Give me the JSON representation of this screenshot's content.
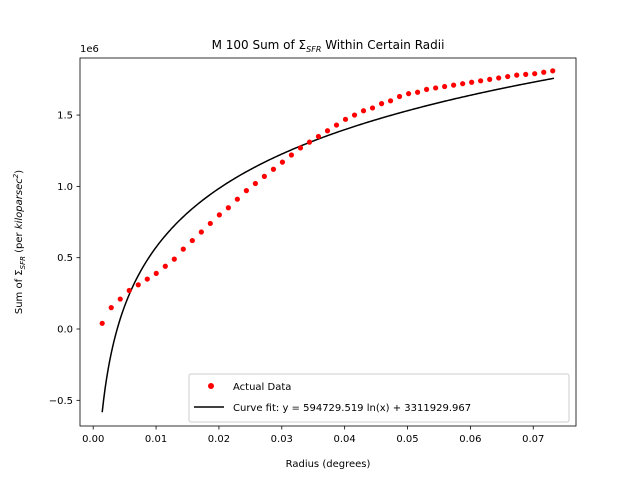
{
  "chart_data": {
    "type": "scatter",
    "title": {
      "prefix": "M 100 Sum of Σ",
      "sub": "SFR",
      "suffix": " Within Certain Radii"
    },
    "xlabel": "Radius (degrees)",
    "ylabel": {
      "prefix": "Sum of Σ",
      "sub": "SFR",
      "mid": " (per ",
      "unit": "kiloparsec",
      "sup": "2",
      "suffix": ")"
    },
    "y_offset_label": "1e6",
    "y_scale": 1000000,
    "xlim": [
      -0.0021,
      0.0768
    ],
    "ylim": [
      -680000,
      1900000
    ],
    "x_ticks": [
      0.0,
      0.01,
      0.02,
      0.03,
      0.04,
      0.05,
      0.06,
      0.07
    ],
    "x_tick_labels": [
      "0.00",
      "0.01",
      "0.02",
      "0.03",
      "0.04",
      "0.05",
      "0.06",
      "0.07"
    ],
    "y_ticks": [
      -500000,
      0,
      500000,
      1000000,
      1500000
    ],
    "y_tick_labels": [
      "−0.5",
      "0.0",
      "0.5",
      "1.0",
      "1.5"
    ],
    "legend_position": "lower-right",
    "series": [
      {
        "name": "Actual Data",
        "kind": "scatter",
        "color": "#ff0000",
        "x": [
          0.00143,
          0.00287,
          0.0043,
          0.00573,
          0.00717,
          0.0086,
          0.01003,
          0.01147,
          0.0129,
          0.01433,
          0.01577,
          0.0172,
          0.01863,
          0.02007,
          0.0215,
          0.02293,
          0.02437,
          0.0258,
          0.02723,
          0.02867,
          0.0301,
          0.03153,
          0.03297,
          0.0344,
          0.03583,
          0.03727,
          0.0387,
          0.04013,
          0.04157,
          0.043,
          0.04443,
          0.04587,
          0.0473,
          0.04873,
          0.05017,
          0.0516,
          0.05303,
          0.05447,
          0.0559,
          0.05733,
          0.05877,
          0.0602,
          0.06163,
          0.06307,
          0.0645,
          0.06593,
          0.06737,
          0.0688,
          0.07023,
          0.07167,
          0.0731
        ],
        "y": [
          40000,
          150000,
          210000,
          270000,
          310000,
          350000,
          390000,
          440000,
          490000,
          560000,
          620000,
          680000,
          740000,
          800000,
          850000,
          910000,
          970000,
          1020000,
          1070000,
          1120000,
          1170000,
          1220000,
          1270000,
          1310000,
          1350000,
          1390000,
          1430000,
          1470000,
          1500000,
          1530000,
          1550000,
          1580000,
          1600000,
          1630000,
          1650000,
          1660000,
          1680000,
          1690000,
          1700000,
          1710000,
          1720000,
          1730000,
          1740000,
          1750000,
          1760000,
          1770000,
          1780000,
          1785000,
          1790000,
          1800000,
          1810000
        ]
      },
      {
        "name": "Curve fit: y = 594729.519 ln(x) + 3311929.967",
        "kind": "line",
        "color": "#000000",
        "a": 594729.519,
        "b": 3311929.967,
        "x_range": [
          0.00143,
          0.0733
        ]
      }
    ]
  }
}
